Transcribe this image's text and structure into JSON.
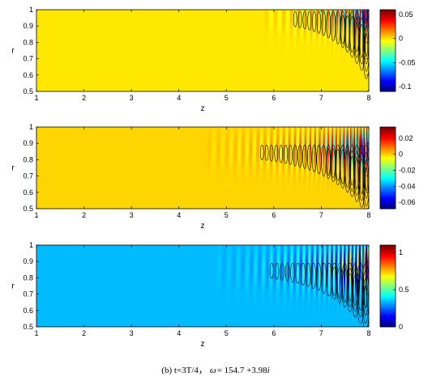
{
  "chart_data": [
    {
      "type": "heatmap",
      "title": "",
      "xlabel": "z",
      "ylabel": "r",
      "xlim": [
        1,
        8
      ],
      "ylim": [
        0.5,
        1
      ],
      "x_ticks": [
        "1",
        "2",
        "3",
        "4",
        "5",
        "6",
        "7",
        "8"
      ],
      "y_ticks": [
        "0.5",
        "0.6",
        "0.7",
        "0.8",
        "0.9",
        "1"
      ],
      "colorbar": {
        "min": -0.11,
        "max": 0.06,
        "ticks": [
          -0.1,
          -0.05,
          0,
          0.05
        ],
        "tick_labels": [
          "-0.1",
          "-0.05",
          "0",
          "0.05"
        ]
      },
      "background_value": 0,
      "field": {
        "wave_onset_z": 5.8,
        "near_wall_r": 0.97,
        "peak_abs_value": 0.1,
        "axial_wavelength_z": 0.2,
        "growth_length_z": 0.65,
        "radial_decay": 0.11
      }
    },
    {
      "type": "heatmap",
      "title": "",
      "xlabel": "z",
      "ylabel": "r",
      "xlim": [
        1,
        8
      ],
      "ylim": [
        0.5,
        1
      ],
      "x_ticks": [
        "1",
        "2",
        "3",
        "4",
        "5",
        "6",
        "7",
        "8"
      ],
      "y_ticks": [
        "0.5",
        "0.6",
        "0.7",
        "0.8",
        "0.9",
        "1"
      ],
      "colorbar": {
        "min": -0.068,
        "max": 0.034,
        "ticks": [
          -0.06,
          -0.04,
          -0.02,
          0,
          0.02
        ],
        "tick_labels": [
          "-0.06",
          "-0.04",
          "-0.02",
          "0",
          "0.02"
        ]
      },
      "background_value": 0,
      "field": {
        "wave_onset_z": 4.6,
        "near_wall_r": 0.87,
        "peak_abs_value": 0.065,
        "axial_wavelength_z": 0.2,
        "growth_length_z": 0.9,
        "radial_decay": 0.12
      }
    },
    {
      "type": "heatmap",
      "title": "",
      "xlabel": "z",
      "ylabel": "r",
      "xlim": [
        1,
        8
      ],
      "ylim": [
        0.5,
        1
      ],
      "x_ticks": [
        "1",
        "2",
        "3",
        "4",
        "5",
        "6",
        "7",
        "8"
      ],
      "y_ticks": [
        "0.5",
        "0.6",
        "0.7",
        "0.8",
        "0.9",
        "1"
      ],
      "colorbar": {
        "min": 0,
        "max": 1.1,
        "ticks": [
          0,
          0.5,
          1
        ],
        "tick_labels": [
          "0",
          "0.5",
          "1"
        ]
      },
      "background_value": 0.34,
      "field": {
        "wave_onset_z": 4.8,
        "near_wall_r": 0.87,
        "peak_abs_value": 0.7,
        "axial_wavelength_z": 0.22,
        "growth_length_z": 0.85,
        "radial_decay": 0.13
      }
    }
  ],
  "caption": {
    "label": "(b) t=3T/4，",
    "omega_symbol": "ω",
    "omega_value": "= 154.7 +3.98",
    "imag_unit": "i"
  }
}
